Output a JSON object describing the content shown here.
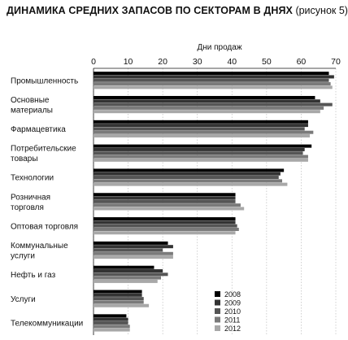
{
  "header": {
    "title_bold": "ДИНАМИКА СРЕДНИХ ЗАПАСОВ ПО СЕКТОРАМ В ДНЯХ",
    "title_rest": " (рисунок 5)"
  },
  "chart_data": {
    "type": "bar",
    "orientation": "horizontal",
    "xlabel": "Дни продаж",
    "ylabel": "",
    "xlim": [
      0,
      70
    ],
    "x_ticks": [
      0,
      10,
      20,
      30,
      40,
      50,
      60,
      70
    ],
    "grid": true,
    "legend_position": "bottom-right",
    "categories": [
      [
        "Промышленность"
      ],
      [
        "Основные",
        "материалы"
      ],
      [
        "Фармацевтика"
      ],
      [
        "Потребительские",
        "товары"
      ],
      [
        "Технологии"
      ],
      [
        "Розничная",
        "торговля"
      ],
      [
        "Оптовая торговля"
      ],
      [
        "Коммунальные",
        "услуги"
      ],
      [
        "Нефть и газ"
      ],
      [
        "Услуги"
      ],
      [
        "Телекоммуникации"
      ]
    ],
    "series": [
      {
        "name": "2008",
        "color": "#000000",
        "values": [
          68,
          64,
          62,
          63,
          55,
          41,
          41,
          21.5,
          17.5,
          14,
          9.5
        ]
      },
      {
        "name": "2009",
        "color": "#333333",
        "values": [
          69.5,
          65.5,
          62,
          61,
          54,
          41,
          41,
          23,
          20,
          14,
          10
        ]
      },
      {
        "name": "2010",
        "color": "#555555",
        "values": [
          68,
          69,
          61,
          60.5,
          53.5,
          41,
          41.5,
          20,
          21.5,
          14.5,
          10
        ]
      },
      {
        "name": "2011",
        "color": "#7a7a7a",
        "values": [
          68.5,
          66.5,
          63.5,
          62,
          54.5,
          42.5,
          42,
          23,
          19.5,
          14.5,
          10.5
        ]
      },
      {
        "name": "2012",
        "color": "#a8a8a8",
        "values": [
          69,
          65.5,
          62.5,
          62,
          56,
          43.5,
          41,
          23,
          18.5,
          16,
          10.5
        ]
      }
    ]
  }
}
